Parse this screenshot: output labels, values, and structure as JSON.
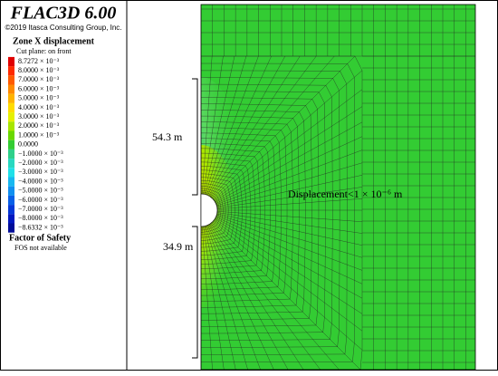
{
  "header": {
    "title": "FLAC3D 6.00",
    "copyright": "©2019 Itasca Consulting Group, Inc."
  },
  "legend": {
    "title": "Zone X displacement",
    "subtitle": "Cut plane: on front",
    "items": [
      {
        "label": "8.7272 × 10⁻³",
        "color": "#e00000"
      },
      {
        "label": "8.0000 × 10⁻³",
        "color": "#ff2a00"
      },
      {
        "label": "7.0000 × 10⁻³",
        "color": "#ff5a00"
      },
      {
        "label": "6.0000 × 10⁻³",
        "color": "#ff8a00"
      },
      {
        "label": "5.0000 × 10⁻³",
        "color": "#ffb400"
      },
      {
        "label": "4.0000 × 10⁻³",
        "color": "#ffdc00"
      },
      {
        "label": "3.0000 × 10⁻³",
        "color": "#e6f000"
      },
      {
        "label": "2.0000 × 10⁻³",
        "color": "#a8e600"
      },
      {
        "label": "1.0000 × 10⁻³",
        "color": "#6ad800"
      },
      {
        "label": "0.0000",
        "color": "#33cc33"
      },
      {
        "label": "−1.0000 × 10⁻³",
        "color": "#2ed08a"
      },
      {
        "label": "−2.0000 × 10⁻³",
        "color": "#28d8c0"
      },
      {
        "label": "−3.0000 × 10⁻³",
        "color": "#20e0e8"
      },
      {
        "label": "−4.0000 × 10⁻³",
        "color": "#18b8f0"
      },
      {
        "label": "−5.0000 × 10⁻³",
        "color": "#1090f0"
      },
      {
        "label": "−6.0000 × 10⁻³",
        "color": "#0860e8"
      },
      {
        "label": "−7.0000 × 10⁻³",
        "color": "#0438d8"
      },
      {
        "label": "−8.0000 × 10⁻³",
        "color": "#0018c0"
      },
      {
        "label": "−8.6332 × 10⁻³",
        "color": "#000c98"
      }
    ]
  },
  "fos": {
    "title": "Factor of Safety",
    "text": "FOS not available"
  },
  "annotations": {
    "upper": "54.3 m",
    "lower": "34.9 m",
    "far_field": "Displacement<1 × 10⁻⁶ m"
  }
}
